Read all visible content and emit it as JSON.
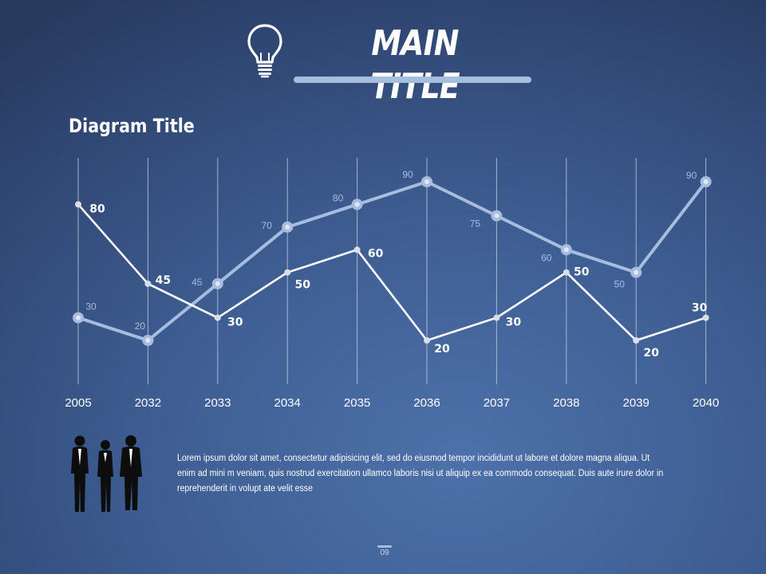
{
  "header": {
    "main_title": "MAIN TITLE",
    "icon": "lightbulb-icon"
  },
  "colors": {
    "series_a": "#a6bde0",
    "series_b": "#ffffff",
    "accent": "#a6bde0"
  },
  "chart_data": {
    "type": "line",
    "title": "Diagram Title",
    "categories": [
      "2005",
      "2032",
      "2033",
      "2034",
      "2035",
      "2036",
      "2037",
      "2038",
      "2039",
      "2040"
    ],
    "ylim": [
      0,
      100
    ],
    "grid": "vertical",
    "series": [
      {
        "values": [
          30,
          20,
          45,
          70,
          80,
          90,
          75,
          60,
          50,
          90
        ],
        "color": "#a6bde0"
      },
      {
        "values": [
          80,
          45,
          30,
          50,
          60,
          20,
          30,
          50,
          20,
          30
        ],
        "color": "#ffffff"
      }
    ]
  },
  "content": {
    "people_icon": "business-people-icon",
    "body_text": "Lorem ipsum dolor sit amet, consectetur adipisicing elit, sed do eiusmod tempor incididunt ut labore et dolore magna aliqua. Ut enim ad mini m veniam, quis nostrud exercitation ullamco laboris nisi ut aliquip ex ea commodo consequat. Duis aute irure dolor in reprehenderit in volupt ate velit esse"
  },
  "footer": {
    "page_number": "09"
  }
}
